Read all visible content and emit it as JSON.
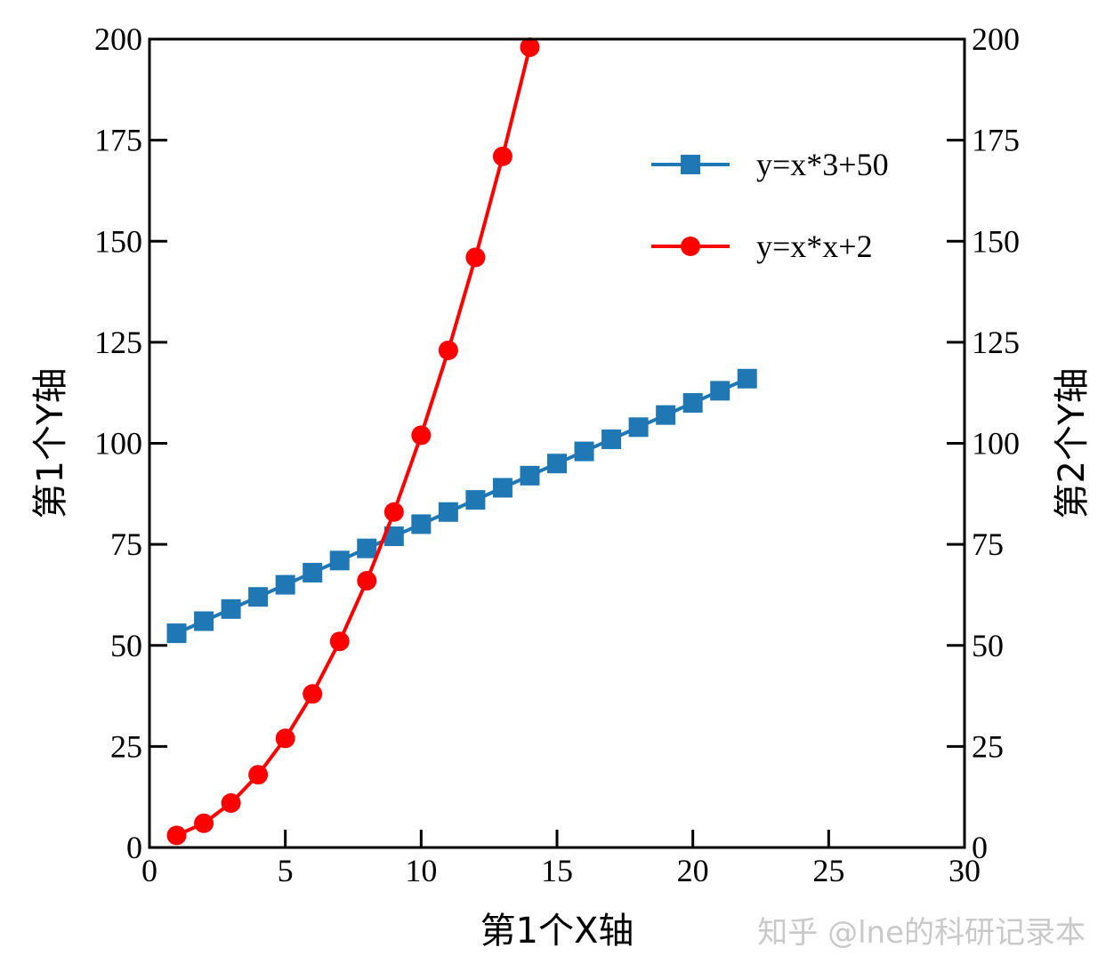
{
  "chart_data": {
    "type": "line",
    "xlabel": "第1个X轴",
    "ylabel": "第1个Y轴",
    "ylabel_right": "第2个Y轴",
    "xlim": [
      0,
      30
    ],
    "ylim": [
      0,
      200
    ],
    "ylim_right": [
      0,
      200
    ],
    "xticks": [
      0,
      5,
      10,
      15,
      20,
      25,
      30
    ],
    "yticks": [
      0,
      25,
      50,
      75,
      100,
      125,
      150,
      175,
      200
    ],
    "grid": false,
    "legend_position": "top-right",
    "series": [
      {
        "name": "y=x*3+50",
        "color": "#1f77b4",
        "marker": "square",
        "x": [
          1,
          2,
          3,
          4,
          5,
          6,
          7,
          8,
          9,
          10,
          11,
          12,
          13,
          14,
          15,
          16,
          17,
          18,
          19,
          20,
          21,
          22
        ],
        "y": [
          53,
          56,
          59,
          62,
          65,
          68,
          71,
          74,
          77,
          80,
          83,
          86,
          89,
          92,
          95,
          98,
          101,
          104,
          107,
          110,
          113,
          116
        ]
      },
      {
        "name": "y=x*x+2",
        "color": "#ff0000",
        "marker": "circle",
        "x": [
          1,
          2,
          3,
          4,
          5,
          6,
          7,
          8,
          9,
          10,
          11,
          12,
          13,
          14
        ],
        "y": [
          3,
          6,
          11,
          18,
          27,
          38,
          51,
          66,
          83,
          102,
          123,
          146,
          171,
          198
        ]
      }
    ]
  },
  "watermark": "知乎 @lne的科研记录本"
}
